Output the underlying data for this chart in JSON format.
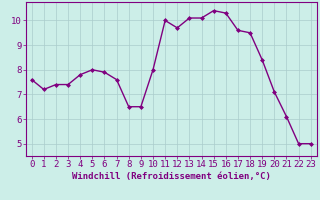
{
  "x": [
    0,
    1,
    2,
    3,
    4,
    5,
    6,
    7,
    8,
    9,
    10,
    11,
    12,
    13,
    14,
    15,
    16,
    17,
    18,
    19,
    20,
    21,
    22,
    23
  ],
  "y": [
    7.6,
    7.2,
    7.4,
    7.4,
    7.8,
    8.0,
    7.9,
    7.6,
    6.5,
    6.5,
    8.0,
    10.0,
    9.7,
    10.1,
    10.1,
    10.4,
    10.3,
    9.6,
    9.5,
    8.4,
    7.1,
    6.1,
    5.0,
    5.0
  ],
  "line_color": "#800080",
  "marker": "D",
  "marker_size": 2,
  "bg_color": "#cceee8",
  "grid_color": "#aacccc",
  "xlabel": "Windchill (Refroidissement éolien,°C)",
  "xlim": [
    -0.5,
    23.5
  ],
  "ylim": [
    4.5,
    10.75
  ],
  "yticks": [
    5,
    6,
    7,
    8,
    9,
    10
  ],
  "xticks": [
    0,
    1,
    2,
    3,
    4,
    5,
    6,
    7,
    8,
    9,
    10,
    11,
    12,
    13,
    14,
    15,
    16,
    17,
    18,
    19,
    20,
    21,
    22,
    23
  ],
  "xlabel_fontsize": 6.5,
  "tick_fontsize": 6.5,
  "line_width": 1.0,
  "spine_color": "#800080"
}
